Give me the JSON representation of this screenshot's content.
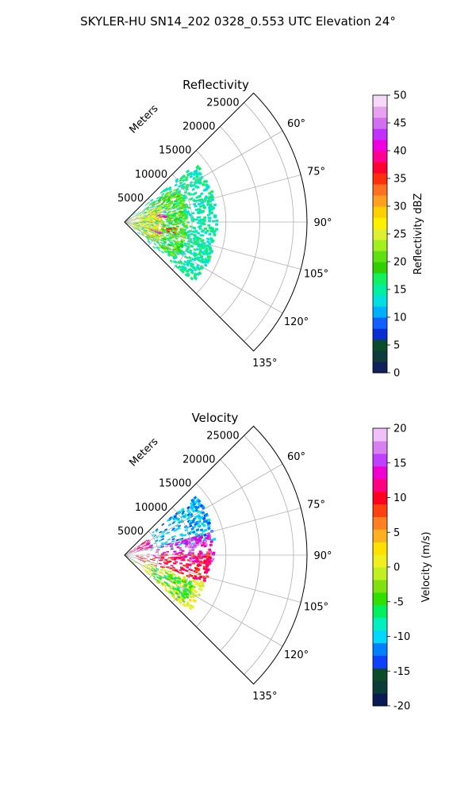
{
  "figure": {
    "suptitle": "SKYLER-HU  SN14_202  0328_0.553 UTC Elevation 24°"
  },
  "chart_data": [
    {
      "type": "heatmap",
      "subtype": "polar-sector radar PPI",
      "title": "Reflectivity",
      "radial_label": "Meters",
      "radial_ticks": [
        "5000",
        "10000",
        "15000",
        "20000",
        "25000"
      ],
      "radial_tick_values": [
        5000,
        10000,
        15000,
        20000,
        25000
      ],
      "rlim": [
        0,
        27000
      ],
      "angle_ticks": [
        "60°",
        "75°",
        "90°",
        "105°",
        "120°",
        "135°"
      ],
      "angle_tick_values": [
        60,
        75,
        90,
        105,
        120,
        135
      ],
      "theta_range": [
        45,
        135
      ],
      "grid": true,
      "colorbar": {
        "label": "Reflectivity dBZ",
        "ticks": [
          "0",
          "5",
          "10",
          "15",
          "20",
          "25",
          "30",
          "35",
          "40",
          "45",
          "50"
        ],
        "range": [
          0,
          50
        ]
      },
      "echoes": [
        {
          "theta": [
            50,
            130
          ],
          "r": [
            0,
            13500
          ],
          "value": 15
        },
        {
          "theta": [
            55,
            125
          ],
          "r": [
            0,
            9000
          ],
          "value": 20
        },
        {
          "theta": [
            65,
            118
          ],
          "r": [
            0,
            5500
          ],
          "value": 27
        },
        {
          "theta": [
            78,
            84
          ],
          "r": [
            4000,
            6000
          ],
          "value": 42
        },
        {
          "theta": [
            103,
            109
          ],
          "r": [
            3500,
            5500
          ],
          "value": 42
        },
        {
          "theta": [
            96,
            102
          ],
          "r": [
            5500,
            7500
          ],
          "value": 34
        }
      ]
    },
    {
      "type": "heatmap",
      "subtype": "polar-sector radar PPI",
      "title": "Velocity",
      "radial_label": "Meters",
      "radial_ticks": [
        "5000",
        "10000",
        "15000",
        "20000",
        "25000"
      ],
      "radial_tick_values": [
        5000,
        10000,
        15000,
        20000,
        25000
      ],
      "rlim": [
        0,
        27000
      ],
      "angle_ticks": [
        "60°",
        "75°",
        "90°",
        "105°",
        "120°",
        "135°"
      ],
      "angle_tick_values": [
        60,
        75,
        90,
        105,
        120,
        135
      ],
      "theta_range": [
        45,
        135
      ],
      "grid": true,
      "colorbar": {
        "label": "Velocity (m/s)",
        "ticks": [
          "-20",
          "-15",
          "-10",
          "-5",
          "0",
          "5",
          "10",
          "15",
          "20"
        ],
        "range": [
          -20,
          20
        ]
      },
      "echoes": [
        {
          "theta": [
            50,
            80
          ],
          "r": [
            3000,
            13500
          ],
          "value": -11
        },
        {
          "theta": [
            75,
            95
          ],
          "r": [
            2500,
            13000
          ],
          "value": 15
        },
        {
          "theta": [
            88,
            108
          ],
          "r": [
            0,
            12500
          ],
          "value": 10
        },
        {
          "theta": [
            108,
            130
          ],
          "r": [
            0,
            12500
          ],
          "value": 0
        },
        {
          "theta": [
            112,
            128
          ],
          "r": [
            3000,
            11000
          ],
          "value": -5
        },
        {
          "theta": [
            55,
            75
          ],
          "r": [
            0,
            4000
          ],
          "value": 12
        }
      ]
    }
  ],
  "colormaps": {
    "reflectivity": [
      "#10205a",
      "#0c3b3a",
      "#0b4a2a",
      "#0a2fd0",
      "#1060ff",
      "#00b0ff",
      "#00e0e0",
      "#00f0a0",
      "#10f060",
      "#30d000",
      "#60e010",
      "#a0f020",
      "#e0f030",
      "#fff000",
      "#ffd000",
      "#ffa020",
      "#ff7020",
      "#ff3010",
      "#ff0030",
      "#ff0090",
      "#f000e0",
      "#c030ff",
      "#d070f0",
      "#e8a0f0",
      "#f8d8f8"
    ],
    "velocity": [
      "#0a1a55",
      "#0b3d38",
      "#0b4a2a",
      "#1040ff",
      "#0080ff",
      "#00d8ff",
      "#00f0c0",
      "#00f060",
      "#30e000",
      "#80e010",
      "#c0f020",
      "#f0f020",
      "#ffe000",
      "#ffb020",
      "#ff8020",
      "#ff4010",
      "#ff0020",
      "#ff0080",
      "#f000d0",
      "#c040ff",
      "#d880f0",
      "#f0c0f8"
    ]
  }
}
